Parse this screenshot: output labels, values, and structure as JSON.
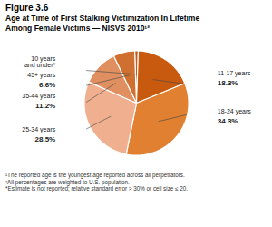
{
  "chart_data": {
    "type": "pie",
    "title": "Figure 3.6",
    "subtitle": [
      "Age at Time of First Stalking Victimization In Lifetime",
      "Among Female Victims — NISVS 2010¹²"
    ],
    "categories": [
      "10 years\nand under*",
      "11-17 years",
      "18-24 years",
      "25-34 years",
      "35-44 years",
      "45+ years"
    ],
    "values": [
      1.1,
      18.3,
      34.3,
      28.5,
      11.2,
      6.6
    ],
    "value_labels": [
      null,
      "18.3%",
      "34.3%",
      "28.5%",
      "11.2%",
      "6.6%"
    ],
    "data_labels": true,
    "colors": [
      "#c45a1a",
      "#c85a10",
      "#e08030",
      "#f0b090",
      "#e09060",
      "#d07030"
    ],
    "annotations": [
      "¹The reported age is the youngest age reported across all perpetrators.",
      "²All percentages are weighted to U.S. population.",
      "*Estimate is not reported; relative standard error > 30% or cell size ≤ 20."
    ]
  }
}
